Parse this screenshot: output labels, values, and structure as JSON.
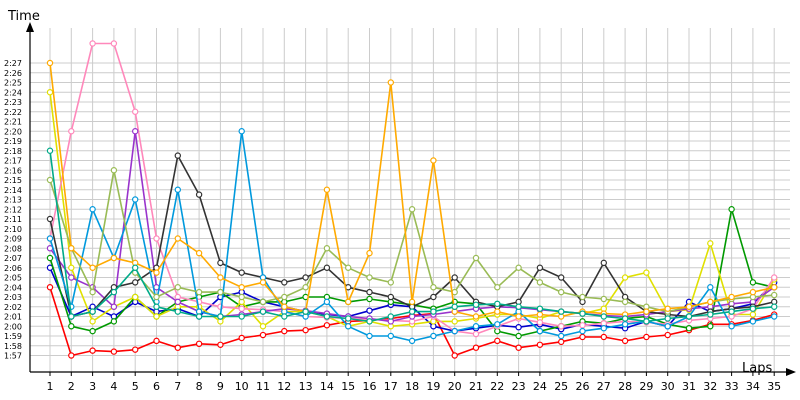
{
  "chart_data": {
    "type": "line",
    "title": "",
    "xlabel": "Laps",
    "ylabel": "Time",
    "xlim": [
      1,
      35
    ],
    "ylim_seconds": [
      116,
      149
    ],
    "grid": true,
    "legend": "none",
    "x_ticks": [
      "1",
      "2",
      "3",
      "4",
      "5",
      "6",
      "7",
      "8",
      "9",
      "10",
      "11",
      "12",
      "13",
      "14",
      "15",
      "16",
      "17",
      "18",
      "19",
      "20",
      "21",
      "22",
      "23",
      "24",
      "25",
      "26",
      "27",
      "28",
      "29",
      "30",
      "31",
      "32",
      "33",
      "34",
      "35"
    ],
    "y_ticks": [
      "1:57",
      "1:58",
      "1:59",
      "2:00",
      "2:01",
      "2:02",
      "2:03",
      "2:04",
      "2:05",
      "2:06",
      "2:07",
      "2:08",
      "2:09",
      "2:10",
      "2:11",
      "2:12",
      "2:13",
      "2:14",
      "2:15",
      "2:16",
      "2:17",
      "2:18",
      "2:19",
      "2:20",
      "2:21",
      "2:22",
      "2:23",
      "2:24",
      "2:25",
      "2:26",
      "2:27"
    ],
    "y_unit": "seconds (2:00 = 120)",
    "series": [
      {
        "color": "#ff0000",
        "values": [
          124,
          117,
          117.5,
          117.4,
          117.6,
          118.5,
          117.8,
          118.2,
          118.1,
          118.8,
          119.1,
          119.5,
          119.6,
          120.1,
          120.5,
          120.6,
          120.8,
          121.1,
          121.3,
          117,
          117.8,
          118.5,
          117.8,
          118.1,
          118.4,
          118.9,
          118.9,
          118.5,
          118.9,
          119.1,
          119.6,
          120.2,
          120.2,
          120.6,
          121.2
        ]
      },
      {
        "color": "#0000cc",
        "values": [
          126,
          121,
          122,
          121,
          122.5,
          121.5,
          121.8,
          121,
          123,
          123.5,
          122.5,
          122,
          121.5,
          121.2,
          121,
          121.6,
          122.2,
          122,
          120,
          119.5,
          119.8,
          120.1,
          119.9,
          120.2,
          119.7,
          120.2,
          120,
          119.8,
          120.5,
          120,
          122.5,
          121.5,
          121.8,
          122.3,
          124.5
        ]
      },
      {
        "color": "#009900",
        "values": [
          127,
          120,
          119.5,
          120.5,
          123,
          121,
          122.5,
          123,
          123.5,
          122,
          122.5,
          122.5,
          123,
          123,
          122.5,
          122.8,
          122.5,
          122.2,
          121.8,
          122.5,
          122.3,
          119.5,
          119,
          119.5,
          120,
          120.5,
          120.3,
          120.8,
          121,
          120.2,
          119.8,
          120,
          132,
          124.5,
          124
        ]
      },
      {
        "color": "#e0e000",
        "values": [
          144,
          126,
          120.5,
          122,
          123,
          121,
          122,
          122,
          120.5,
          122.5,
          120,
          121.5,
          121.5,
          121,
          120,
          120.5,
          120,
          120.2,
          120.5,
          120.5,
          120.8,
          121.2,
          121.2,
          120.8,
          121.5,
          121.3,
          121.8,
          125,
          125.5,
          121.5,
          121.7,
          128.5,
          121.2,
          121.2,
          124.8
        ]
      },
      {
        "color": "#ff88bb",
        "values": [
          129,
          140,
          149,
          149,
          142,
          129,
          123,
          122.5,
          122,
          121.8,
          121.7,
          121.5,
          121,
          120.9,
          120.8,
          120.7,
          120.6,
          120.5,
          121,
          119.5,
          119.2,
          120,
          120.8,
          120.4,
          120,
          120.1,
          120.3,
          120.5,
          120.4,
          120.2,
          120.6,
          120.8,
          121,
          121.8,
          125
        ]
      },
      {
        "color": "#9933cc",
        "values": [
          128,
          125,
          124,
          122,
          140,
          124,
          122.5,
          121.5,
          121,
          121.2,
          121.5,
          121.8,
          121.6,
          121.3,
          121,
          120.8,
          120.5,
          121,
          121.2,
          121.5,
          121.8,
          122,
          121.9,
          121.7,
          121.5,
          121.3,
          121.1,
          121,
          121.2,
          121.5,
          121.8,
          122,
          122.3,
          122.5,
          124
        ]
      },
      {
        "color": "#333333",
        "values": [
          131,
          121,
          121.5,
          124,
          124.5,
          126,
          137.5,
          133.5,
          126.5,
          125.5,
          125,
          124.5,
          125,
          126,
          124,
          123.5,
          123,
          122,
          123,
          125,
          122.5,
          122,
          122.5,
          126,
          125,
          122.5,
          126.5,
          123,
          121.5,
          121.2,
          121,
          121.5,
          121.8,
          122,
          122.5
        ]
      },
      {
        "color": "#0099dd",
        "values": [
          129,
          122,
          132,
          127,
          133,
          122.5,
          134,
          121.5,
          121,
          140,
          125,
          121.5,
          121,
          122.5,
          120,
          119,
          119,
          118.5,
          119,
          119.5,
          120,
          120.2,
          121.5,
          119.5,
          119,
          119.5,
          119.8,
          120.2,
          120.5,
          120,
          121,
          124,
          120,
          120.5,
          121
        ]
      },
      {
        "color": "#99bb55",
        "values": [
          135,
          128,
          123.5,
          136,
          125.5,
          123,
          124,
          123.5,
          123.5,
          123,
          122.5,
          123,
          124,
          128,
          126,
          125,
          124.5,
          132,
          124,
          123.5,
          127,
          124,
          126,
          124.5,
          123.5,
          123,
          122.8,
          122.5,
          122,
          121.5,
          122,
          122.5,
          122.8,
          123,
          123.2
        ]
      },
      {
        "color": "#ffaa00",
        "values": [
          147,
          128,
          126,
          127,
          126.5,
          125.5,
          129,
          127.5,
          125,
          124,
          124.5,
          122,
          121.5,
          134,
          122.5,
          127.5,
          145,
          122.5,
          137,
          121.5,
          121,
          121.5,
          121,
          121.2,
          121,
          121.5,
          121.3,
          121.2,
          121.5,
          121.8,
          122,
          122.5,
          123,
          123.5,
          124
        ]
      },
      {
        "color": "#00aa88",
        "values": [
          138,
          121,
          121.5,
          123.5,
          126,
          122,
          121.5,
          121,
          121,
          121,
          121.5,
          121,
          121.5,
          121,
          120.8,
          120.5,
          121,
          121.5,
          121.5,
          122,
          122.2,
          122.3,
          122,
          121.8,
          121.5,
          121.3,
          121,
          120.8,
          120.5,
          120.8,
          121,
          121.2,
          121.5,
          121.8,
          122
        ]
      }
    ]
  }
}
